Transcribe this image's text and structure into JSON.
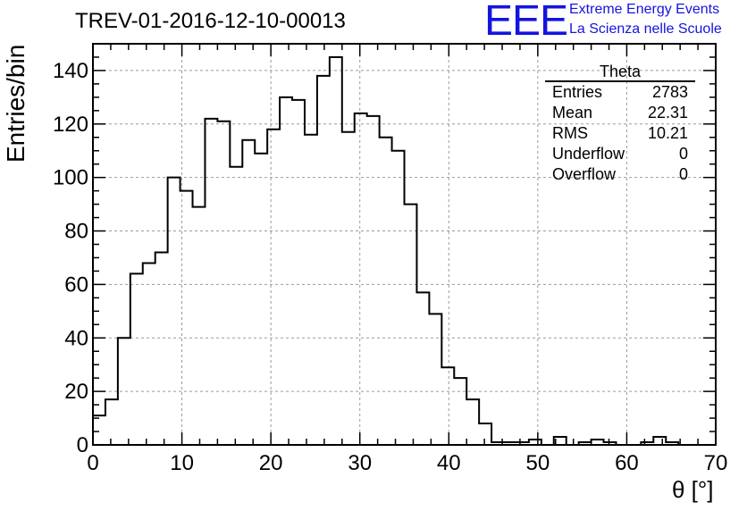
{
  "header": {
    "title": "TREV-01-2016-12-10-00013",
    "logo_mark": "EEE",
    "logo_line1": "Extreme Energy Events",
    "logo_line2": "La Scienza nelle Scuole",
    "brand_color": "#1414e0"
  },
  "stats_box": {
    "title": "Theta",
    "rows": [
      {
        "label": "Entries",
        "value": "2783"
      },
      {
        "label": "Mean",
        "value": "22.31"
      },
      {
        "label": "RMS",
        "value": "10.21"
      },
      {
        "label": "Underflow",
        "value": "0"
      },
      {
        "label": "Overflow",
        "value": "0"
      }
    ]
  },
  "chart_data": {
    "type": "bar",
    "style": "step-histogram",
    "title": "TREV-01-2016-12-10-00013",
    "xlabel": "θ [°]",
    "ylabel": "Entries/bin",
    "xlim": [
      0,
      70
    ],
    "ylim": [
      0,
      150
    ],
    "bin_width": 1.4,
    "x_ticks": [
      "0",
      "10",
      "20",
      "30",
      "40",
      "50",
      "60",
      "70"
    ],
    "y_ticks": [
      "0",
      "20",
      "40",
      "60",
      "80",
      "100",
      "120",
      "140"
    ],
    "grid": true,
    "series": [
      {
        "values": [
          11,
          17,
          40,
          64,
          68,
          72,
          100,
          95,
          89,
          122,
          121,
          104,
          114,
          109,
          118,
          130,
          129,
          116,
          138,
          145,
          117,
          124,
          123,
          115,
          110,
          90,
          57,
          49,
          29,
          25,
          17,
          8,
          1,
          1,
          1,
          2,
          0,
          3,
          0,
          1,
          2,
          1,
          0,
          0,
          1,
          3,
          1,
          0,
          0,
          0
        ]
      }
    ],
    "line_color": "#000000",
    "grid_color": "#9a9a9a"
  }
}
